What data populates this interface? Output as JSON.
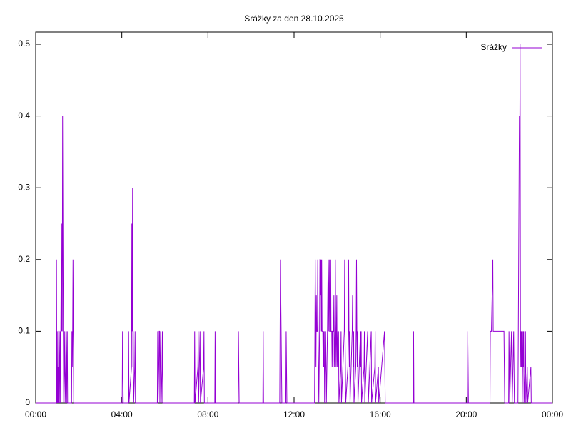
{
  "chart_data": {
    "type": "line",
    "title": "Srážky za den 28.10.2025",
    "x": [
      0,
      57,
      58,
      59,
      60,
      61,
      62,
      63,
      64,
      65,
      66,
      68,
      69,
      70,
      71,
      72,
      73,
      74,
      75,
      76,
      77,
      78,
      80,
      81,
      82,
      84,
      85,
      86,
      88,
      89,
      100,
      101,
      102,
      103,
      104,
      105,
      106,
      241,
      242,
      243,
      244,
      258,
      259,
      260,
      267,
      268,
      269,
      270,
      271,
      272,
      273,
      276,
      277,
      278,
      339,
      340,
      341,
      343,
      344,
      345,
      346,
      348,
      349,
      350,
      352,
      353,
      354,
      442,
      443,
      444,
      452,
      453,
      454,
      458,
      459,
      468,
      469,
      470,
      499,
      500,
      501,
      564,
      565,
      566,
      567,
      633,
      634,
      635,
      680,
      681,
      682,
      683,
      684,
      685,
      686,
      697,
      698,
      699,
      700,
      777,
      778,
      779,
      780,
      781,
      782,
      783,
      785,
      786,
      787,
      788,
      789,
      791,
      792,
      793,
      794,
      795,
      796,
      797,
      798,
      800,
      801,
      802,
      803,
      804,
      805,
      807,
      808,
      809,
      810,
      813,
      814,
      815,
      816,
      817,
      818,
      819,
      821,
      822,
      823,
      825,
      826,
      827,
      830,
      831,
      832,
      834,
      835,
      836,
      837,
      838,
      839,
      840,
      842,
      843,
      844,
      845,
      850,
      851,
      852,
      860,
      861,
      862,
      863,
      864,
      870,
      871,
      872,
      873,
      874,
      875,
      876,
      882,
      883,
      884,
      885,
      886,
      887,
      892,
      893,
      894,
      895,
      896,
      897,
      898,
      905,
      906,
      907,
      908,
      915,
      916,
      917,
      925,
      926,
      927,
      935,
      936,
      945,
      946,
      947,
      955,
      956,
      972,
      973,
      974,
      1052,
      1053,
      1054,
      1203,
      1204,
      1205,
      1206,
      1266,
      1267,
      1270,
      1274,
      1275,
      1305,
      1306,
      1307,
      1318,
      1319,
      1320,
      1321,
      1326,
      1327,
      1328,
      1332,
      1333,
      1334,
      1344,
      1345,
      1347,
      1348,
      1349,
      1350,
      1351,
      1352,
      1353,
      1354,
      1355,
      1356,
      1358,
      1359,
      1360,
      1361,
      1364,
      1365,
      1366,
      1370,
      1371,
      1380,
      1381,
      1440
    ],
    "series": [
      {
        "name": "Srážky",
        "color": "#9400d3",
        "values": [
          0,
          0,
          0.2,
          0,
          0.1,
          0,
          0.05,
          0,
          0.1,
          0.1,
          0,
          0.1,
          0,
          0.1,
          0.2,
          0.1,
          0.25,
          0.1,
          0.4,
          0.25,
          0.1,
          0,
          0.05,
          0.1,
          0,
          0.05,
          0.1,
          0,
          0.1,
          0,
          0,
          0.1,
          0.05,
          0.1,
          0.2,
          0.1,
          0,
          0,
          0.1,
          0.05,
          0,
          0,
          0.1,
          0,
          0.05,
          0.25,
          0.1,
          0.3,
          0.05,
          0.1,
          0,
          0.05,
          0.1,
          0,
          0,
          0.1,
          0,
          0.05,
          0.1,
          0.1,
          0,
          0.1,
          0.05,
          0,
          0.05,
          0.1,
          0,
          0,
          0.1,
          0,
          0.05,
          0.1,
          0,
          0.1,
          0,
          0.05,
          0.1,
          0,
          0,
          0.1,
          0,
          0,
          0.1,
          0.05,
          0,
          0,
          0.1,
          0,
          0,
          0.1,
          0.2,
          0.15,
          0.1,
          0.05,
          0,
          0,
          0.1,
          0.05,
          0,
          0,
          0.1,
          0.2,
          0.1,
          0.05,
          0.15,
          0.1,
          0.1,
          0.2,
          0.1,
          0.05,
          0,
          0.1,
          0.2,
          0.2,
          0.15,
          0.2,
          0.1,
          0.2,
          0.1,
          0.1,
          0.05,
          0.1,
          0.05,
          0.1,
          0,
          0.05,
          0.1,
          0.05,
          0,
          0.1,
          0.15,
          0.2,
          0.1,
          0.15,
          0.2,
          0.1,
          0.1,
          0.2,
          0.1,
          0.1,
          0.05,
          0.1,
          0.1,
          0.15,
          0.05,
          0.1,
          0.2,
          0.1,
          0.05,
          0.1,
          0.15,
          0.05,
          0.1,
          0.05,
          0.1,
          0,
          0.05,
          0.1,
          0,
          0.1,
          0.2,
          0.1,
          0.05,
          0,
          0.05,
          0.1,
          0.2,
          0.1,
          0.05,
          0.1,
          0,
          0.1,
          0.15,
          0.1,
          0.05,
          0.1,
          0,
          0.05,
          0.1,
          0.2,
          0.1,
          0.05,
          0.1,
          0,
          0.1,
          0.05,
          0.1,
          0,
          0.05,
          0.1,
          0,
          0.1,
          0.05,
          0,
          0.1,
          0,
          0.05,
          0.1,
          0,
          0.05,
          0,
          0.1,
          0.05,
          0,
          0,
          0.1,
          0,
          0,
          0.1,
          0.05,
          0,
          0,
          0.1,
          0.1,
          0.2,
          0.1,
          0.1,
          0.05,
          0,
          0,
          0.1,
          0.05,
          0,
          0.1,
          0.05,
          0,
          0.1,
          0.05,
          0,
          0,
          0.1,
          0.3,
          0.4,
          0.35,
          0.5,
          0.1,
          0.05,
          0.1,
          0.05,
          0.1,
          0,
          0.1,
          0.05,
          0.1,
          0,
          0.05,
          0.1,
          0,
          0.05,
          0,
          0.05,
          0,
          0
        ]
      }
    ],
    "xlim": [
      0,
      1440
    ],
    "xticks": [
      {
        "value": 0,
        "label": "00:00"
      },
      {
        "value": 240,
        "label": "04:00"
      },
      {
        "value": 480,
        "label": "08:00"
      },
      {
        "value": 720,
        "label": "12:00"
      },
      {
        "value": 960,
        "label": "16:00"
      },
      {
        "value": 1200,
        "label": "20:00"
      },
      {
        "value": 1440,
        "label": "00:00"
      }
    ],
    "ylim": [
      0,
      0.5
    ],
    "yticks": [
      0,
      0.1,
      0.2,
      0.3,
      0.4,
      0.5
    ],
    "legend": "top-right"
  }
}
